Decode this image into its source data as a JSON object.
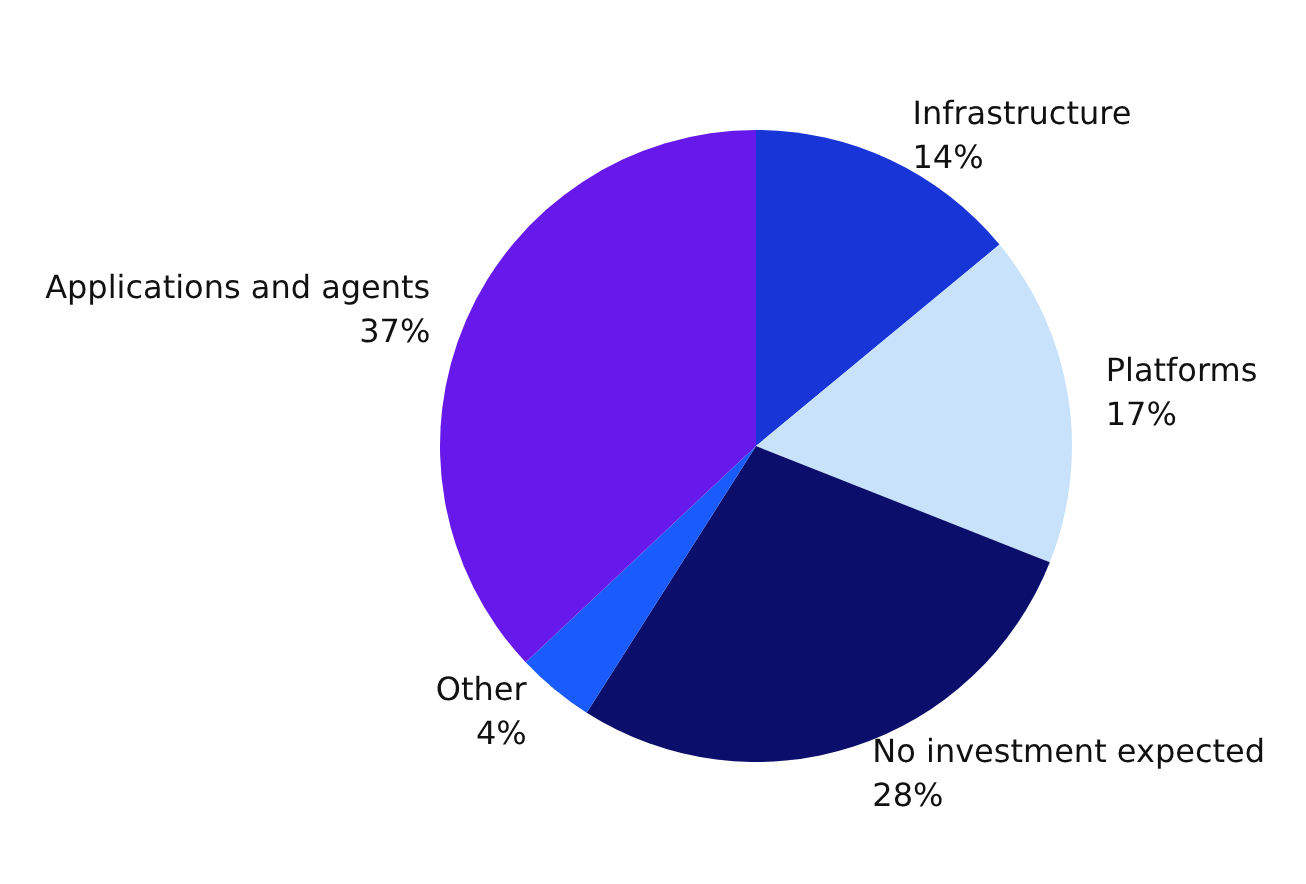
{
  "chart_data": {
    "type": "pie",
    "categories": [
      "Infrastructure",
      "Platforms",
      "No investment expected",
      "Other",
      "Applications and agents"
    ],
    "values": [
      14,
      17,
      28,
      4,
      37
    ],
    "value_labels": [
      "14%",
      "17%",
      "28%",
      "4%",
      "37%"
    ],
    "colors": [
      "#1836d8",
      "#c8e2fb",
      "#0b0f6b",
      "#1a5cfb",
      "#6718ea"
    ],
    "legend": false
  }
}
